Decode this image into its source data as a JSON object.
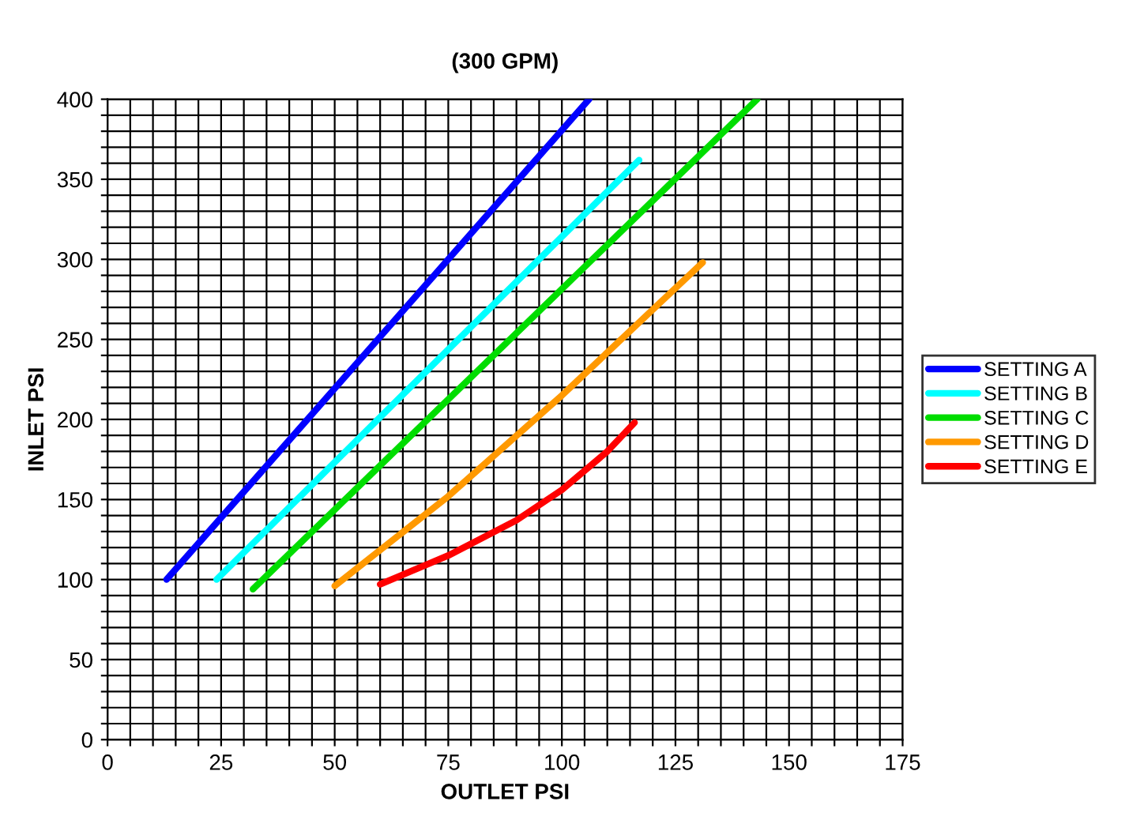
{
  "chart_data": {
    "type": "line",
    "title": "(300 GPM)",
    "xlabel": "OUTLET PSI",
    "ylabel": "INLET PSI",
    "xlim": [
      0,
      175
    ],
    "ylim": [
      0,
      400
    ],
    "xticks": [
      0,
      {
        "value": 5,
        "label": null
      },
      {
        "value": 10,
        "label": null
      },
      {
        "value": 15,
        "label": null
      },
      {
        "value": 20,
        "label": null
      },
      25,
      {
        "value": 30,
        "label": null
      },
      {
        "value": 35,
        "label": null
      },
      {
        "value": 40,
        "label": null
      },
      {
        "value": 45,
        "label": null
      },
      50,
      {
        "value": 55,
        "label": null
      },
      {
        "value": 60,
        "label": null
      },
      {
        "value": 65,
        "label": null
      },
      {
        "value": 70,
        "label": null
      },
      75,
      {
        "value": 80,
        "label": null
      },
      {
        "value": 85,
        "label": null
      },
      {
        "value": 90,
        "label": null
      },
      {
        "value": 95,
        "label": null
      },
      100,
      {
        "value": 105,
        "label": null
      },
      {
        "value": 110,
        "label": null
      },
      {
        "value": 115,
        "label": null
      },
      {
        "value": 120,
        "label": null
      },
      125,
      {
        "value": 130,
        "label": null
      },
      {
        "value": 135,
        "label": null
      },
      {
        "value": 140,
        "label": null
      },
      {
        "value": 145,
        "label": null
      },
      150,
      {
        "value": 155,
        "label": null
      },
      {
        "value": 160,
        "label": null
      },
      {
        "value": 165,
        "label": null
      },
      {
        "value": 170,
        "label": null
      },
      175
    ],
    "yticks": [
      0,
      {
        "value": 10,
        "label": null
      },
      {
        "value": 20,
        "label": null
      },
      {
        "value": 30,
        "label": null
      },
      {
        "value": 40,
        "label": null
      },
      50,
      {
        "value": 60,
        "label": null
      },
      {
        "value": 70,
        "label": null
      },
      {
        "value": 80,
        "label": null
      },
      {
        "value": 90,
        "label": null
      },
      100,
      {
        "value": 110,
        "label": null
      },
      {
        "value": 120,
        "label": null
      },
      {
        "value": 130,
        "label": null
      },
      {
        "value": 140,
        "label": null
      },
      150,
      {
        "value": 160,
        "label": null
      },
      {
        "value": 170,
        "label": null
      },
      {
        "value": 180,
        "label": null
      },
      {
        "value": 190,
        "label": null
      },
      200,
      {
        "value": 210,
        "label": null
      },
      {
        "value": 220,
        "label": null
      },
      {
        "value": 230,
        "label": null
      },
      {
        "value": 240,
        "label": null
      },
      250,
      {
        "value": 260,
        "label": null
      },
      {
        "value": 270,
        "label": null
      },
      {
        "value": 280,
        "label": null
      },
      {
        "value": 290,
        "label": null
      },
      300,
      {
        "value": 310,
        "label": null
      },
      {
        "value": 320,
        "label": null
      },
      {
        "value": 330,
        "label": null
      },
      {
        "value": 340,
        "label": null
      },
      350,
      {
        "value": 360,
        "label": null
      },
      {
        "value": 370,
        "label": null
      },
      {
        "value": 380,
        "label": null
      },
      {
        "value": 390,
        "label": null
      },
      400
    ],
    "grid": true,
    "legend": "right",
    "line_style": "solid",
    "series": [
      {
        "name": "SETTING A",
        "color": "#0000ff",
        "x": [
          13,
          106
        ],
        "values": [
          100,
          400
        ]
      },
      {
        "name": "SETTING B",
        "color": "#00ffff",
        "x": [
          24,
          117
        ],
        "values": [
          100,
          362
        ]
      },
      {
        "name": "SETTING C",
        "color": "#00dd00",
        "x": [
          32,
          143
        ],
        "values": [
          94,
          400
        ]
      },
      {
        "name": "SETTING D",
        "color": "#ff9900",
        "x": [
          50,
          75,
          100,
          131
        ],
        "values": [
          96,
          152,
          215,
          298
        ]
      },
      {
        "name": "SETTING E",
        "color": "#ff0000",
        "x": [
          60,
          75,
          90,
          100,
          110,
          116
        ],
        "values": [
          97,
          115,
          137,
          156,
          180,
          198
        ]
      }
    ]
  }
}
